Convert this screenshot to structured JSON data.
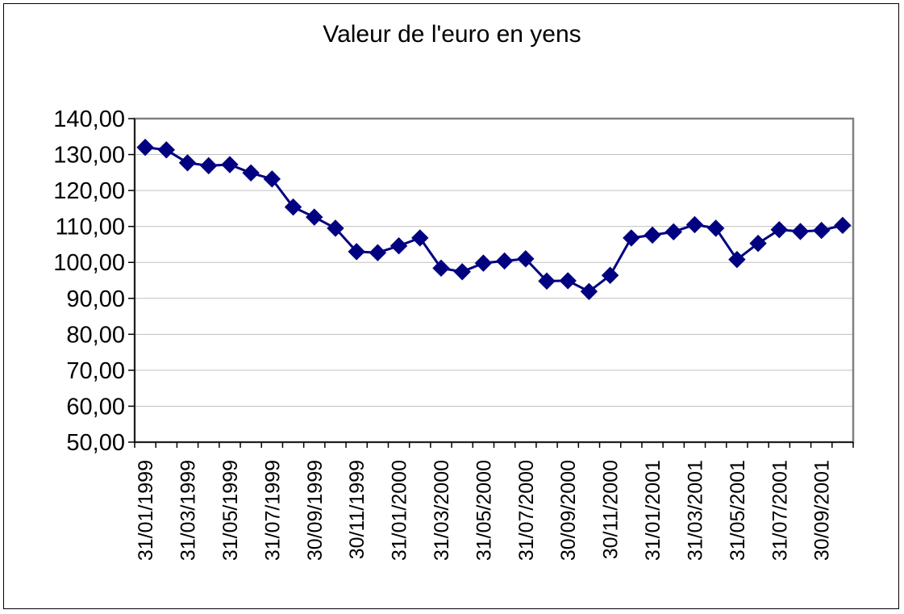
{
  "chart_data": {
    "type": "line",
    "title": "Valeur de l'euro en yens",
    "xlabel": "",
    "ylabel": "",
    "ylim": [
      50,
      140
    ],
    "ytick_step": 10,
    "ytick_labels": [
      "50,00",
      "60,00",
      "70,00",
      "80,00",
      "90,00",
      "100,00",
      "110,00",
      "120,00",
      "130,00",
      "140,00"
    ],
    "xtick_labels": [
      "31/01/1999",
      "31/03/1999",
      "31/05/1999",
      "31/07/1999",
      "30/09/1999",
      "30/11/1999",
      "31/01/2000",
      "31/03/2000",
      "31/05/2000",
      "31/07/2000",
      "30/09/2000",
      "30/11/2000",
      "31/01/2001",
      "31/03/2001",
      "31/05/2001",
      "31/07/2001",
      "30/09/2001"
    ],
    "grid": true,
    "legend": "none",
    "marker": "diamond",
    "line_color": "#000080",
    "series": [
      {
        "x": [
          "31/01/1999",
          "28/02/1999",
          "31/03/1999",
          "30/04/1999",
          "31/05/1999",
          "30/06/1999",
          "31/07/1999",
          "31/08/1999",
          "30/09/1999",
          "31/10/1999",
          "30/11/1999",
          "31/12/1999",
          "31/01/2000",
          "29/02/2000",
          "31/03/2000",
          "30/04/2000",
          "31/05/2000",
          "30/06/2000",
          "31/07/2000",
          "31/08/2000",
          "30/09/2000",
          "31/10/2000",
          "30/11/2000",
          "31/12/2000",
          "31/01/2001",
          "28/02/2001",
          "31/03/2001",
          "30/04/2001",
          "31/05/2001",
          "30/06/2001",
          "31/07/2001",
          "31/08/2001",
          "30/09/2001",
          "31/10/2001"
        ],
        "values": [
          132.0,
          131.3,
          127.7,
          126.9,
          127.2,
          124.9,
          123.2,
          115.4,
          112.6,
          109.5,
          103.0,
          102.7,
          104.6,
          106.8,
          98.4,
          97.4,
          99.8,
          100.4,
          101.0,
          94.8,
          94.9,
          91.9,
          96.4,
          106.8,
          107.6,
          108.5,
          110.5,
          109.5,
          100.8,
          105.3,
          109.1,
          108.6,
          108.9,
          110.3
        ]
      }
    ]
  }
}
